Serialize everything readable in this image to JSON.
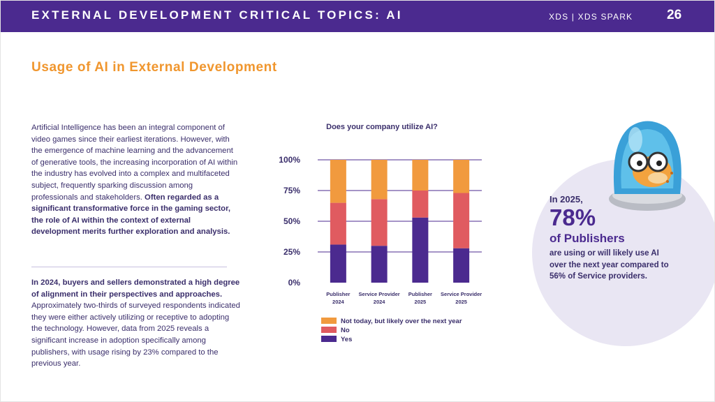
{
  "header": {
    "title": "EXTERNAL DEVELOPMENT CRITICAL TOPICS: AI",
    "brand": "XDS  |  XDS SPARK",
    "page_number": "26"
  },
  "section": {
    "title": "Usage of AI in External Development"
  },
  "paragraph1": {
    "normal": "Artificial Intelligence has been an integral component of video games since their earliest iterations. However, with the emergence of machine learning and the advancement of generative tools, the increasing incorporation of AI within the industry has evolved into a complex and multifaceted subject, frequently sparking discussion among professionals and stakeholders. ",
    "bold": "Often regarded as a significant transformative force in the gaming sector, the role of AI within the context of external development merits further exploration and analysis."
  },
  "paragraph2": {
    "bold": "In 2024, buyers and sellers demonstrated a high degree of alignment in their perspectives and approaches.",
    "normal": " Approximately two-thirds of surveyed respondents indicated they were either actively utilizing or receptive to adopting the technology. However, data from 2025 reveals a significant increase in adoption specifically among publishers, with usage rising by 23% compared to the previous year."
  },
  "callout": {
    "intro": "In 2025,",
    "percent": "78%",
    "subject": "of Publishers",
    "desc_normal": "are using or will likely use AI over the next year compared to ",
    "desc_bold": "56% of Service providers."
  },
  "colors": {
    "header": "#4b2a8f",
    "accent_orange": "#f0962e",
    "yes": "#4b2a8f",
    "no": "#e05b60",
    "likely": "#f19a3e"
  },
  "chart_data": {
    "type": "bar",
    "stacked": true,
    "title": "Does your company utilize AI?",
    "categories": [
      [
        "Publisher",
        "2024"
      ],
      [
        "Service Provider",
        "2024"
      ],
      [
        "Publisher",
        "2025"
      ],
      [
        "Service Provider",
        "2025"
      ]
    ],
    "series": [
      {
        "name": "Yes",
        "color": "#4b2a8f",
        "values": [
          31,
          30,
          53,
          28
        ]
      },
      {
        "name": "No",
        "color": "#e05b60",
        "values": [
          34,
          38,
          22,
          45
        ]
      },
      {
        "name": "Not today, but likely over the next year",
        "color": "#f19a3e",
        "values": [
          35,
          32,
          25,
          27
        ]
      }
    ],
    "ylim": [
      0,
      100
    ],
    "yticks": [
      "0%",
      "25%",
      "50%",
      "75%",
      "100%"
    ],
    "legend_order": [
      "Not today, but likely over the next year",
      "No",
      "Yes"
    ],
    "legend_position": "bottom"
  }
}
